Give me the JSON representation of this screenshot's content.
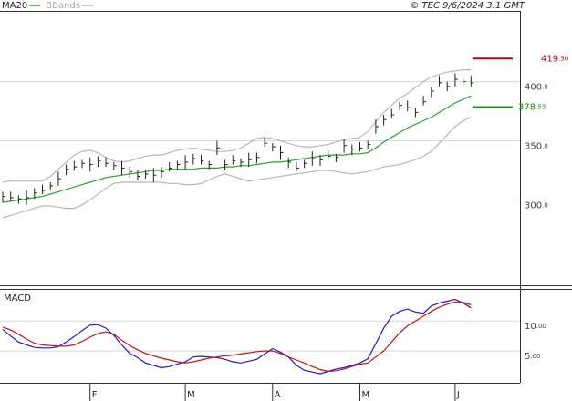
{
  "chart_data": [
    {
      "type": "ohlc",
      "credit": "© TEC 9/6/2024 3:1 GMT",
      "close": [
        303,
        302,
        301,
        302,
        306,
        308,
        312,
        318,
        326,
        328,
        331,
        330,
        333,
        331,
        329,
        327,
        324,
        320,
        322,
        321,
        324,
        327,
        330,
        332,
        335,
        333,
        330,
        344,
        330,
        333,
        332,
        334,
        336,
        348,
        345,
        340,
        332,
        327,
        331,
        335,
        334,
        337,
        336,
        346,
        343,
        344,
        347,
        362,
        368,
        372,
        380,
        378,
        374,
        383,
        392,
        399,
        396,
        402,
        400,
        399
      ],
      "high": [
        307,
        307,
        304,
        308,
        310,
        313,
        315,
        324,
        330,
        333,
        334,
        336,
        337,
        336,
        332,
        333,
        328,
        325,
        325,
        327,
        328,
        332,
        333,
        338,
        339,
        338,
        333,
        350,
        334,
        338,
        335,
        340,
        340,
        353,
        348,
        346,
        336,
        332,
        334,
        341,
        338,
        342,
        339,
        352,
        347,
        349,
        350,
        368,
        372,
        377,
        383,
        384,
        378,
        388,
        395,
        405,
        400,
        407,
        403,
        405
      ],
      "low": [
        298,
        299,
        297,
        296,
        301,
        305,
        308,
        312,
        321,
        325,
        327,
        324,
        328,
        328,
        325,
        321,
        319,
        317,
        318,
        315,
        319,
        324,
        326,
        326,
        330,
        330,
        326,
        338,
        325,
        330,
        328,
        328,
        331,
        345,
        341,
        334,
        327,
        324,
        327,
        329,
        329,
        334,
        332,
        340,
        338,
        341,
        343,
        356,
        363,
        369,
        376,
        375,
        370,
        380,
        387,
        396,
        392,
        396,
        395,
        396
      ],
      "color": "#222222",
      "series": [
        {
          "name": "MA20",
          "color": "#2aa52a",
          "values": [
            298,
            299,
            300,
            301,
            302,
            303,
            305,
            307,
            309,
            311,
            313,
            315,
            317,
            319,
            320,
            321,
            322,
            323,
            324,
            325,
            325,
            326,
            326,
            326,
            326,
            327,
            327,
            327,
            328,
            328,
            329,
            329,
            330,
            331,
            332,
            332,
            333,
            334,
            335,
            336,
            337,
            338,
            338,
            338,
            339,
            339,
            340,
            344,
            349,
            353,
            357,
            361,
            364,
            367,
            370,
            374,
            378,
            382,
            385,
            388
          ]
        },
        {
          "name": "BBands",
          "color": "#b8b8b8",
          "upper": [
            315,
            316,
            316,
            316,
            316,
            316,
            320,
            326,
            332,
            338,
            341,
            342,
            340,
            336,
            333,
            332,
            333,
            335,
            337,
            338,
            338,
            340,
            342,
            343,
            344,
            343,
            342,
            341,
            341,
            342,
            344,
            348,
            352,
            353,
            352,
            350,
            348,
            346,
            345,
            345,
            346,
            347,
            349,
            351,
            352,
            353,
            358,
            366,
            374,
            380,
            386,
            390,
            395,
            400,
            404,
            406,
            408,
            409,
            410,
            410
          ],
          "lower": [
            285,
            287,
            289,
            291,
            293,
            295,
            295,
            294,
            293,
            293,
            296,
            300,
            305,
            310,
            314,
            315,
            315,
            315,
            315,
            315,
            315,
            314,
            314,
            313,
            313,
            314,
            317,
            320,
            322,
            320,
            318,
            316,
            317,
            318,
            319,
            320,
            321,
            322,
            323,
            324,
            325,
            325,
            324,
            323,
            322,
            323,
            324,
            326,
            328,
            329,
            330,
            332,
            334,
            337,
            341,
            348,
            355,
            362,
            367,
            370
          ]
        }
      ],
      "markers": [
        {
          "value": 419.5,
          "label": "419.50",
          "color": "#c00000"
        },
        {
          "value": 378.53,
          "label": "378.53",
          "color": "#139313"
        }
      ],
      "ylim": [
        228,
        459
      ],
      "yticks": [
        {
          "value": 300,
          "label": "300.0"
        },
        {
          "value": 350,
          "label": "350.0"
        },
        {
          "value": 400,
          "label": "400.0"
        }
      ],
      "grid": true
    },
    {
      "type": "line",
      "title": "MACD",
      "categories": [
        null,
        null,
        null,
        null,
        null,
        null,
        null,
        null,
        null,
        null,
        null,
        "F",
        null,
        null,
        null,
        null,
        null,
        null,
        null,
        null,
        null,
        null,
        null,
        "M",
        null,
        null,
        null,
        null,
        null,
        null,
        null,
        null,
        null,
        null,
        "A",
        null,
        null,
        null,
        null,
        null,
        null,
        null,
        null,
        null,
        null,
        "M",
        null,
        null,
        null,
        null,
        null,
        null,
        null,
        null,
        null,
        null,
        null,
        "J",
        null,
        null
      ],
      "series": [
        {
          "color": "#1a1adc",
          "values": [
            8.6,
            7.5,
            6.5,
            6.0,
            5.6,
            5.5,
            5.5,
            5.7,
            6.5,
            7.4,
            8.4,
            9.3,
            9.4,
            8.8,
            7.6,
            6.0,
            4.6,
            3.9,
            3.0,
            2.6,
            2.2,
            2.4,
            2.8,
            3.2,
            4.0,
            4.1,
            4.0,
            3.9,
            3.6,
            3.2,
            3.0,
            3.3,
            3.6,
            4.5,
            5.4,
            4.8,
            4.0,
            2.6,
            1.8,
            1.5,
            1.2,
            1.6,
            2.0,
            2.2,
            2.6,
            3.0,
            3.7,
            6.2,
            8.8,
            10.8,
            11.6,
            12.0,
            11.5,
            11.3,
            12.5,
            13.0,
            13.3,
            13.6,
            13.0,
            12.2
          ]
        },
        {
          "color": "#d01010",
          "values": [
            9.0,
            8.5,
            7.8,
            7.0,
            6.3,
            6.0,
            5.9,
            5.8,
            5.8,
            6.0,
            6.6,
            7.3,
            7.9,
            8.2,
            7.8,
            6.8,
            5.9,
            5.2,
            4.6,
            4.2,
            3.8,
            3.5,
            3.2,
            3.0,
            3.2,
            3.5,
            3.8,
            4.0,
            4.2,
            4.3,
            4.5,
            4.7,
            4.9,
            5.0,
            5.0,
            4.6,
            4.0,
            3.5,
            3.0,
            2.4,
            1.9,
            1.6,
            1.7,
            2.0,
            2.4,
            2.8,
            3.0,
            4.0,
            5.0,
            6.5,
            8.0,
            9.2,
            10.0,
            10.8,
            11.6,
            12.3,
            12.8,
            13.2,
            13.1,
            12.7
          ]
        }
      ],
      "ylim": [
        -0.3,
        15.2
      ],
      "yticks": [
        {
          "value": 5,
          "label": "5.00"
        },
        {
          "value": 10,
          "label": "10.00"
        }
      ],
      "grid": true
    }
  ]
}
